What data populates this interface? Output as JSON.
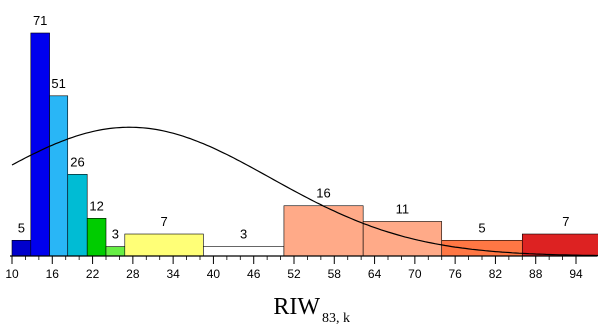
{
  "chart_data": {
    "type": "bar",
    "xlabel": "RIW",
    "xlabel_subscript": "83, k",
    "x_ticks": [
      10,
      16,
      22,
      28,
      34,
      40,
      46,
      52,
      58,
      64,
      70,
      76,
      82,
      88,
      94
    ],
    "xlim": [
      10,
      99
    ],
    "ylim": [
      0,
      71
    ],
    "grid": false,
    "legend": "none",
    "bars": [
      {
        "x0": 10.0,
        "x1": 12.8,
        "value": 5,
        "color": "#0000cc"
      },
      {
        "x0": 12.8,
        "x1": 15.6,
        "value": 71,
        "color": "#0000ee"
      },
      {
        "x0": 15.6,
        "x1": 18.3,
        "value": 51,
        "color": "#29b6f6"
      },
      {
        "x0": 18.3,
        "x1": 21.2,
        "value": 26,
        "color": "#00bcd4"
      },
      {
        "x0": 21.2,
        "x1": 24.0,
        "value": 12,
        "color": "#00cc00"
      },
      {
        "x0": 24.0,
        "x1": 26.8,
        "value": 3,
        "color": "#66ee44"
      },
      {
        "x0": 26.8,
        "x1": 38.5,
        "value": 7,
        "color": "#ffff77"
      },
      {
        "x0": 38.5,
        "x1": 50.5,
        "value": 3,
        "color": "#ffffff"
      },
      {
        "x0": 50.5,
        "x1": 62.3,
        "value": 16,
        "color": "#ffaa88"
      },
      {
        "x0": 62.3,
        "x1": 74.0,
        "value": 11,
        "color": "#ffaa88"
      },
      {
        "x0": 74.0,
        "x1": 86.0,
        "value": 5,
        "color": "#ff7744"
      },
      {
        "x0": 86.0,
        "x1": 99.0,
        "value": 7,
        "color": "#dd2222"
      }
    ],
    "curve": {
      "type": "normal-fit",
      "peak_x": 27.5,
      "sigma": 21,
      "peak_value": 41,
      "start_value": 27,
      "x_range": [
        10,
        99
      ]
    }
  }
}
